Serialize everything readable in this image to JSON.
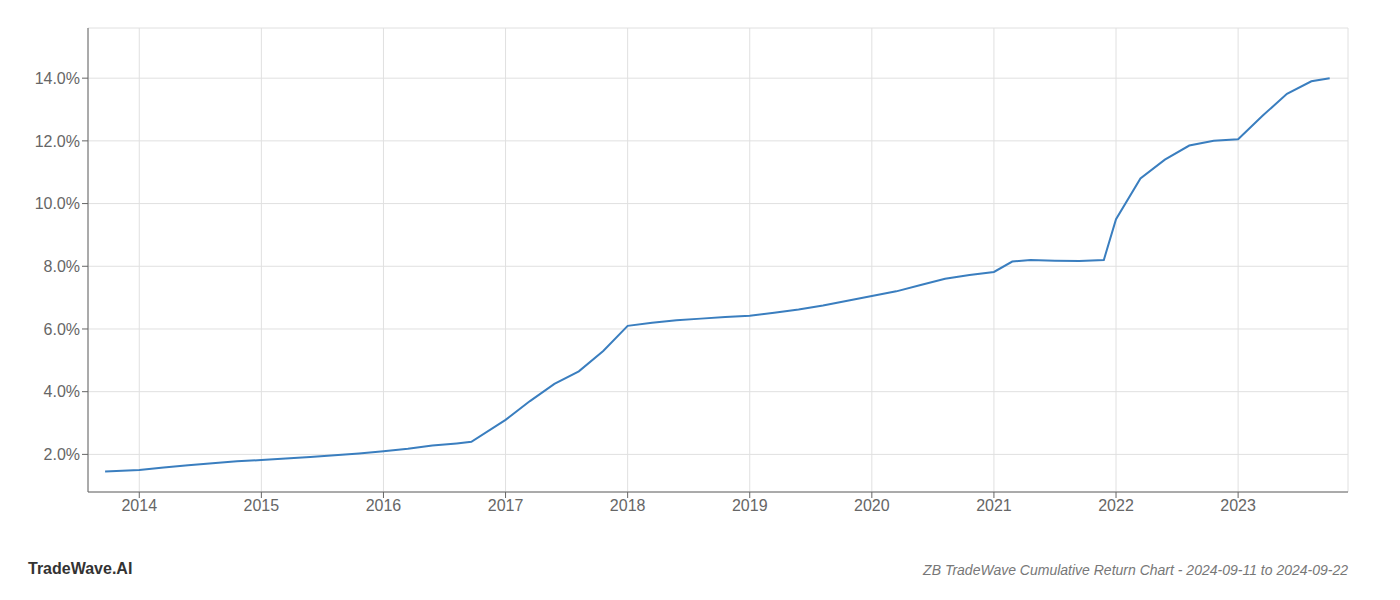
{
  "chart_data": {
    "type": "line",
    "title": "ZB TradeWave Cumulative Return Chart - 2024-09-11 to 2024-09-22",
    "annotations": [
      "TradeWave.AI"
    ],
    "color": "#3a7ebf",
    "grid": true,
    "x": [
      2013.72,
      2014.0,
      2014.2,
      2014.4,
      2014.6,
      2014.8,
      2015.0,
      2015.2,
      2015.4,
      2015.6,
      2015.8,
      2016.0,
      2016.2,
      2016.4,
      2016.6,
      2016.72,
      2017.0,
      2017.2,
      2017.4,
      2017.6,
      2017.8,
      2018.0,
      2018.2,
      2018.4,
      2018.6,
      2018.8,
      2019.0,
      2019.2,
      2019.4,
      2019.6,
      2019.8,
      2020.0,
      2020.2,
      2020.4,
      2020.6,
      2020.8,
      2021.0,
      2021.15,
      2021.3,
      2021.5,
      2021.7,
      2021.9,
      2022.0,
      2022.2,
      2022.4,
      2022.6,
      2022.8,
      2023.0,
      2023.2,
      2023.4,
      2023.6,
      2023.75
    ],
    "values": [
      1.45,
      1.5,
      1.58,
      1.65,
      1.72,
      1.78,
      1.82,
      1.87,
      1.92,
      1.97,
      2.03,
      2.1,
      2.18,
      2.28,
      2.35,
      2.4,
      3.1,
      3.7,
      4.25,
      4.65,
      5.3,
      6.1,
      6.2,
      6.28,
      6.33,
      6.38,
      6.42,
      6.52,
      6.62,
      6.75,
      6.9,
      7.05,
      7.2,
      7.4,
      7.6,
      7.72,
      7.82,
      8.15,
      8.2,
      8.18,
      8.17,
      8.2,
      9.5,
      10.8,
      11.4,
      11.85,
      12.0,
      12.05,
      12.8,
      13.5,
      13.9,
      14.0
    ],
    "xlim": [
      2013.58,
      2023.9
    ],
    "ylim": [
      0.8,
      15.6
    ],
    "xticks": [
      2014,
      2015,
      2016,
      2017,
      2018,
      2019,
      2020,
      2021,
      2022,
      2023
    ],
    "yticks": [
      {
        "value": 2.0,
        "label": "2.0%"
      },
      {
        "value": 4.0,
        "label": "4.0%"
      },
      {
        "value": 6.0,
        "label": "6.0%"
      },
      {
        "value": 8.0,
        "label": "8.0%"
      },
      {
        "value": 10.0,
        "label": "10.0%"
      },
      {
        "value": 12.0,
        "label": "12.0%"
      },
      {
        "value": 14.0,
        "label": "14.0%"
      }
    ]
  }
}
